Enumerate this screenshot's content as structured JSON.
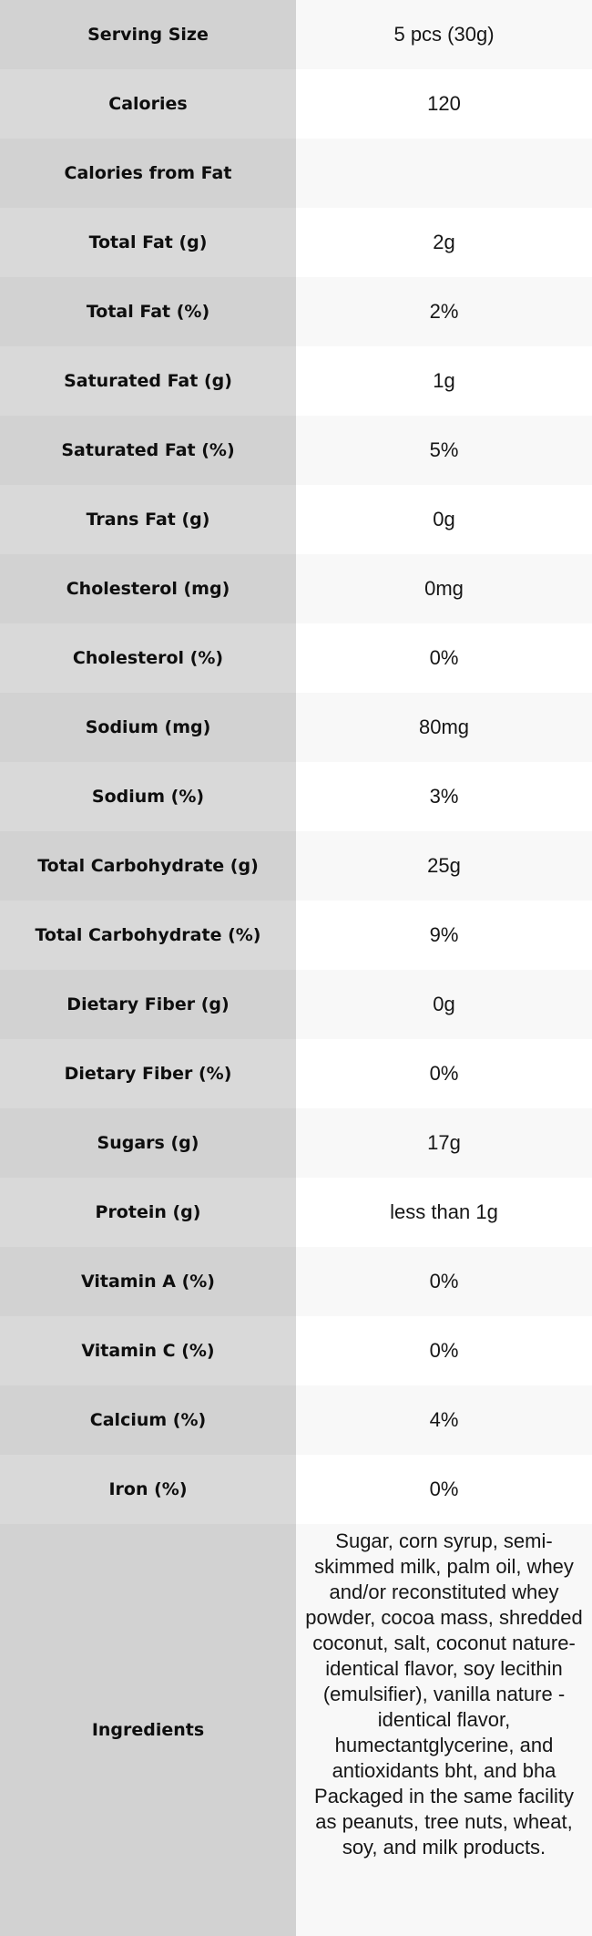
{
  "colors": {
    "label_column_odd": "#d2d2d2",
    "label_column_even": "#d9d9d9",
    "value_column_odd": "#f8f8f8",
    "value_column_even": "#ffffff",
    "text": "#141414"
  },
  "table": {
    "rows": [
      {
        "label": "Serving Size",
        "value": "5 pcs (30g)"
      },
      {
        "label": "Calories",
        "value": "120"
      },
      {
        "label": "Calories from Fat",
        "value": ""
      },
      {
        "label": "Total Fat (g)",
        "value": "2g"
      },
      {
        "label": "Total Fat (%)",
        "value": "2%"
      },
      {
        "label": "Saturated Fat (g)",
        "value": "1g"
      },
      {
        "label": "Saturated Fat (%)",
        "value": "5%"
      },
      {
        "label": "Trans Fat (g)",
        "value": "0g"
      },
      {
        "label": "Cholesterol (mg)",
        "value": "0mg"
      },
      {
        "label": "Cholesterol (%)",
        "value": "0%"
      },
      {
        "label": "Sodium (mg)",
        "value": "80mg"
      },
      {
        "label": "Sodium (%)",
        "value": "3%"
      },
      {
        "label": "Total Carbohydrate (g)",
        "value": "25g"
      },
      {
        "label": "Total Carbohydrate (%)",
        "value": "9%"
      },
      {
        "label": "Dietary Fiber (g)",
        "value": "0g"
      },
      {
        "label": "Dietary Fiber (%)",
        "value": "0%"
      },
      {
        "label": "Sugars (g)",
        "value": "17g"
      },
      {
        "label": "Protein (g)",
        "value": "less than 1g"
      },
      {
        "label": "Vitamin A (%)",
        "value": "0%"
      },
      {
        "label": "Vitamin C (%)",
        "value": "0%"
      },
      {
        "label": "Calcium (%)",
        "value": "4%"
      },
      {
        "label": "Iron (%)",
        "value": "0%"
      },
      {
        "label": "Ingredients",
        "value": "Sugar, corn syrup, semi-skimmed milk, palm oil, whey and/or reconstituted whey powder, cocoa mass, shredded coconut, salt, coconut nature-identical flavor, soy lecithin (emulsifier), vanilla nature - identical flavor, humectantglycerine, and antioxidants bht, and bha Packaged in the same facility as peanuts, tree nuts, wheat, soy, and milk products."
      }
    ]
  }
}
